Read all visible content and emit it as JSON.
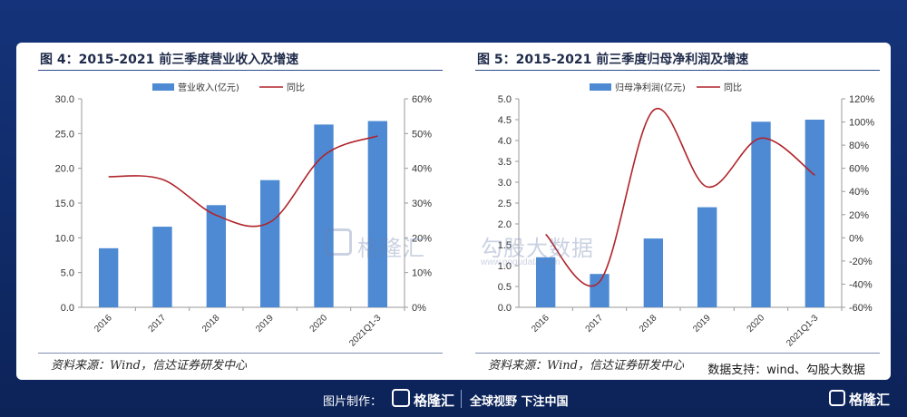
{
  "left_chart": {
    "title": "图 4：2015-2021 前三季度营业收入及增速",
    "source": "资料来源：Wind，信达证券研发中心"
  },
  "right_chart": {
    "title": "图 5：2015-2021 前三季度归母净利润及增速",
    "source": "资料来源：Wind，信达证券研发中心",
    "support": "数据支持：wind、勾股大数据"
  },
  "watermark": {
    "brand": "格隆汇",
    "brand2": "勾股大数据",
    "url": "www.gogudata.com"
  },
  "footer": {
    "made_by": "图片制作：",
    "logo_text": "格隆汇",
    "slogan": "全球视野 下注中国",
    "corner_text": "格隆汇"
  },
  "colors": {
    "bar": "#4d8ad3",
    "line": "#b0242b",
    "background": "#13307a"
  },
  "chart_data": [
    {
      "type": "bar",
      "categories": [
        "2016",
        "2017",
        "2018",
        "2019",
        "2020",
        "2021Q1-3"
      ],
      "series": [
        {
          "name": "营业收入(亿元)",
          "type": "bar",
          "axis": "left",
          "values": [
            8.5,
            11.6,
            14.7,
            18.3,
            26.3,
            26.8
          ]
        },
        {
          "name": "同比",
          "type": "line",
          "axis": "right",
          "values": [
            37.6,
            36.8,
            26.5,
            24.5,
            43.7,
            49.3
          ]
        }
      ],
      "yticks_left": [
        "0.0",
        "5.0",
        "10.0",
        "15.0",
        "20.0",
        "25.0",
        "30.0"
      ],
      "yticks_right": [
        "0%",
        "10%",
        "20%",
        "30%",
        "40%",
        "50%",
        "60%"
      ],
      "ylim_left": [
        0,
        30
      ],
      "ylim_right": [
        0,
        60
      ],
      "legend": "top-center",
      "grid": false
    },
    {
      "type": "bar",
      "categories": [
        "2016",
        "2017",
        "2018",
        "2019",
        "2020",
        "2021Q1-3"
      ],
      "series": [
        {
          "name": "归母净利润(亿元)",
          "type": "bar",
          "axis": "left",
          "values": [
            1.2,
            0.8,
            1.65,
            2.4,
            4.45,
            4.5
          ]
        },
        {
          "name": "同比",
          "type": "line",
          "axis": "right",
          "values": [
            3,
            -38,
            110,
            44,
            86,
            54
          ]
        }
      ],
      "yticks_left": [
        "0.0",
        "0.5",
        "1.0",
        "1.5",
        "2.0",
        "2.5",
        "3.0",
        "3.5",
        "4.0",
        "4.5",
        "5.0"
      ],
      "yticks_right": [
        "-60%",
        "-40%",
        "-20%",
        "0%",
        "20%",
        "40%",
        "60%",
        "80%",
        "100%",
        "120%"
      ],
      "ylim_left": [
        0,
        5
      ],
      "ylim_right": [
        -60,
        120
      ],
      "legend": "top-center",
      "grid": false
    }
  ]
}
